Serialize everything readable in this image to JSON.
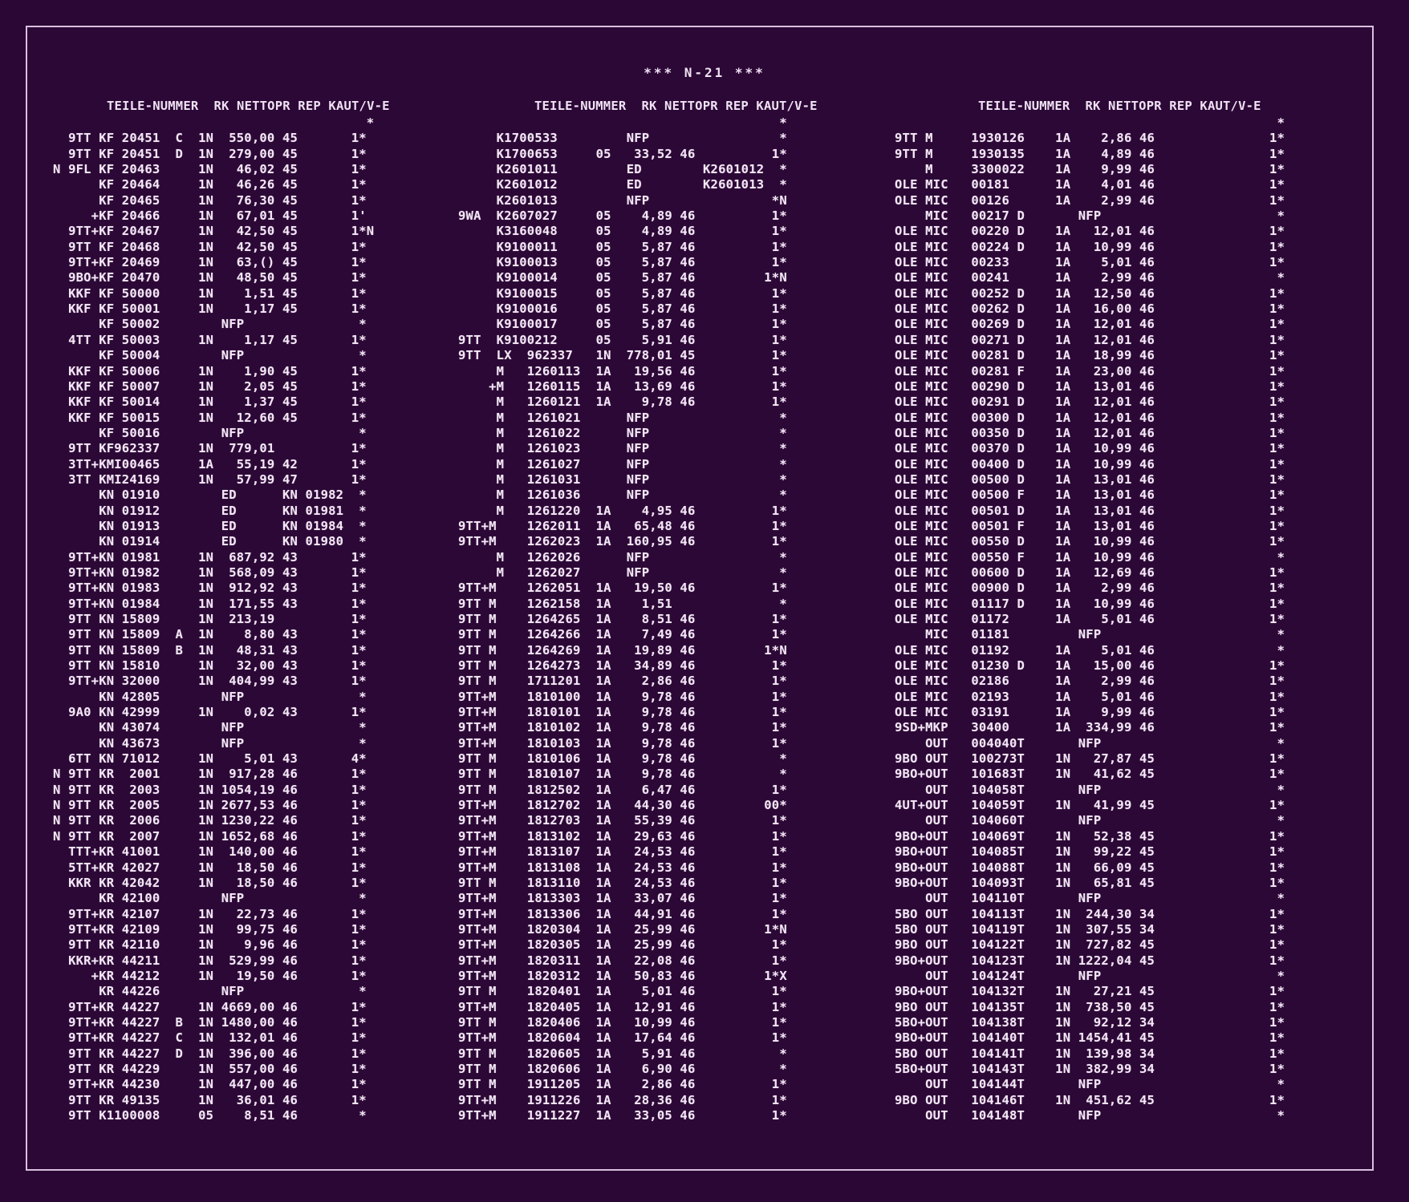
{
  "title": "*** N-21 ***",
  "header_label": "TEILE-NUMMER  RK NETTOPR REP KAUT/V-E",
  "column1": [
    "                                         *",
    "  9TT KF 20451  C  1N  550,00 45       1*",
    "  9TT KF 20451  D  1N  279,00 45       1*",
    "N 9FL KF 20463     1N   46,02 45       1*",
    "      KF 20464     1N   46,26 45       1*",
    "      KF 20465     1N   76,30 45       1*",
    "     +KF 20466     1N   67,01 45       1'",
    "  9TT+KF 20467     1N   42,50 45       1*N",
    "  9TT KF 20468     1N   42,50 45       1*",
    "  9TT+KF 20469     1N   63,() 45       1*",
    "  9BO+KF 20470     1N   48,50 45       1*",
    "  KKF KF 50000     1N    1,51 45       1*",
    "  KKF KF 50001     1N    1,17 45       1*",
    "      KF 50002        NFP               *",
    "  4TT KF 50003     1N    1,17 45       1*",
    "      KF 50004        NFP               *",
    "  KKF KF 50006     1N    1,90 45       1*",
    "  KKF KF 50007     1N    2,05 45       1*",
    "  KKF KF 50014     1N    1,37 45       1*",
    "  KKF KF 50015     1N   12,60 45       1*",
    "      KF 50016        NFP               *",
    "  9TT KF962337     1N  779,01          1*",
    "  3TT+KMI00465     1A   55,19 42       1*",
    "  3TT KMI24169     1N   57,99 47       1*",
    "      KN 01910        ED      KN 01982  *",
    "      KN 01912        ED      KN 01981  *",
    "      KN 01913        ED      KN 01984  *",
    "      KN 01914        ED      KN 01980  *",
    "  9TT+KN 01981     1N  687,92 43       1*",
    "  9TT+KN 01982     1N  568,09 43       1*",
    "  9TT+KN 01983     1N  912,92 43       1*",
    "  9TT+KN 01984     1N  171,55 43       1*",
    "  9TT KN 15809     1N  213,19          1*",
    "  9TT KN 15809  A  1N    8,80 43       1*",
    "  9TT KN 15809  B  1N   48,31 43       1*",
    "  9TT KN 15810     1N   32,00 43       1*",
    "  9TT+KN 32000     1N  404,99 43       1*",
    "      KN 42805        NFP               *",
    "  9A0 KN 42999     1N    0,02 43       1*",
    "      KN 43074        NFP               *",
    "      KN 43673        NFP               *",
    "  6TT KN 71012     1N    5,01 43       4*",
    "N 9TT KR  2001     1N  917,28 46       1*",
    "N 9TT KR  2003     1N 1054,19 46       1*",
    "N 9TT KR  2005     1N 2677,53 46       1*",
    "N 9TT KR  2006     1N 1230,22 46       1*",
    "N 9TT KR  2007     1N 1652,68 46       1*",
    "  TTT+KR 41001     1N  140,00 46       1*",
    "  5TT+KR 42027     1N   18,50 46       1*",
    "  KKR KR 42042     1N   18,50 46       1*",
    "      KR 42100        NFP               *",
    "  9TT+KR 42107     1N   22,73 46       1*",
    "  9TT+KR 42109     1N   99,75 46       1*",
    "  9TT KR 42110     1N    9,96 46       1*",
    "  KKR+KR 44211     1N  529,99 46       1*",
    "     +KR 44212     1N   19,50 46       1*",
    "      KR 44226        NFP               *",
    "  9TT+KR 44227     1N 4669,00 46       1*",
    "  9TT+KR 44227  B  1N 1480,00 46       1*",
    "  9TT+KR 44227  C  1N  132,01 46       1*",
    "  9TT KR 44227  D  1N  396,00 46       1*",
    "  9TT KR 44229     1N  557,00 46       1*",
    "  9TT+KR 44230     1N  447,00 46       1*",
    "  9TT KR 49135     1N   36,01 46       1*",
    "  9TT K1100008     05    8,51 46        *"
  ],
  "column2": [
    "                                          *",
    "     K1700533         NFP                 *",
    "     K1700653     05   33,52 46          1*",
    "     K2601011         ED        K2601012  *",
    "     K2601012         ED        K2601013  *",
    "     K2601013         NFP                *N",
    "9WA  K2607027     05    4,89 46          1*",
    "     K3160048     05    4,89 46          1*",
    "     K9100011     05    5,87 46          1*",
    "     K9100013     05    5,87 46          1*",
    "     K9100014     05    5,87 46         1*N",
    "     K9100015     05    5,87 46          1*",
    "     K9100016     05    5,87 46          1*",
    "     K9100017     05    5,87 46          1*",
    "9TT  K9100212     05    5,91 46          1*",
    "9TT  LX  962337   1N  778,01 45          1*",
    "     M   1260113  1A   19,56 46          1*",
    "    +M   1260115  1A   13,69 46          1*",
    "     M   1260121  1A    9,78 46          1*",
    "     M   1261021      NFP                 *",
    "     M   1261022      NFP                 *",
    "     M   1261023      NFP                 *",
    "     M   1261027      NFP                 *",
    "     M   1261031      NFP                 *",
    "     M   1261036      NFP                 *",
    "     M   1261220  1A    4,95 46          1*",
    "9TT+M    1262011  1A   65,48 46          1*",
    "9TT+M    1262023  1A  160,95 46          1*",
    "     M   1262026      NFP                 *",
    "     M   1262027      NFP                 *",
    "9TT+M    1262051  1A   19,50 46          1*",
    "9TT M    1262158  1A    1,51              *",
    "9TT M    1264265  1A    8,51 46          1*",
    "9TT M    1264266  1A    7,49 46          1*",
    "9TT M    1264269  1A   19,89 46         1*N",
    "9TT M    1264273  1A   34,89 46          1*",
    "9TT M    1711201  1A    2,86 46          1*",
    "9TT+M    1810100  1A    9,78 46          1*",
    "9TT+M    1810101  1A    9,78 46          1*",
    "9TT+M    1810102  1A    9,78 46          1*",
    "9TT+M    1810103  1A    9,78 46          1*",
    "9TT M    1810106  1A    9,78 46           *",
    "9TT M    1810107  1A    9,78 46           *",
    "9TT M    1812502  1A    6,47 46          1*",
    "9TT+M    1812702  1A   44,30 46         00*",
    "9TT+M    1812703  1A   55,39 46          1*",
    "9TT+M    1813102  1A   29,63 46          1*",
    "9TT+M    1813107  1A   24,53 46          1*",
    "9TT+M    1813108  1A   24,53 46          1*",
    "9TT M    1813110  1A   24,53 46          1*",
    "9TT+M    1813303  1A   33,07 46          1*",
    "9TT+M    1813306  1A   44,91 46          1*",
    "9TT+M    1820304  1A   25,99 46         1*N",
    "9TT+M    1820305  1A   25,99 46          1*",
    "9TT+M    1820311  1A   22,08 46          1*",
    "9TT+M    1820312  1A   50,83 46         1*X",
    "9TT M    1820401  1A    5,01 46          1*",
    "9TT+M    1820405  1A   12,91 46          1*",
    "9TT M    1820406  1A   10,99 46          1*",
    "9TT+M    1820604  1A   17,64 46          1*",
    "9TT M    1820605  1A    5,91 46           *",
    "9TT M    1820606  1A    6,90 46           *",
    "9TT M    1911205  1A    2,86 46          1*",
    "9TT+M    1911226  1A   28,36 46          1*",
    "9TT+M    1911227  1A   33,05 46          1*"
  ],
  "column3": [
    "                                                  *",
    "9TT M     1930126    1A    2,86 46               1*",
    "9TT M     1930135    1A    4,89 46               1*",
    "    M     3300022    1A    9,99 46               1*",
    "OLE MIC   00181      1A    4,01 46               1*",
    "OLE MIC   00126      1A    2,99 46               1*",
    "    MIC   00217 D       NFP                       *",
    "OLE MIC   00220 D    1A   12,01 46               1*",
    "OLE MIC   00224 D    1A   10,99 46               1*",
    "OLE MIC   00233      1A    5,01 46               1*",
    "OLE MIC   00241      1A    2,99 46                *",
    "OLE MIC   00252 D    1A   12,50 46               1*",
    "OLE MIC   00262 D    1A   16,00 46               1*",
    "OLE MIC   00269 D    1A   12,01 46               1*",
    "OLE MIC   00271 D    1A   12,01 46               1*",
    "OLE MIC   00281 D    1A   18,99 46               1*",
    "OLE MIC   00281 F    1A   23,00 46               1*",
    "OLE MIC   00290 D    1A   13,01 46               1*",
    "OLE MIC   00291 D    1A   12,01 46               1*",
    "OLE MIC   00300 D    1A   12,01 46               1*",
    "OLE MIC   00350 D    1A   12,01 46               1*",
    "OLE MIC   00370 D    1A   10,99 46               1*",
    "OLE MIC   00400 D    1A   10,99 46               1*",
    "OLE MIC   00500 D    1A   13,01 46               1*",
    "OLE MIC   00500 F    1A   13,01 46               1*",
    "OLE MIC   00501 D    1A   13,01 46               1*",
    "OLE MIC   00501 F    1A   13,01 46               1*",
    "OLE MIC   00550 D    1A   10,99 46               1*",
    "OLE MIC   00550 F    1A   10,99 46                *",
    "OLE MIC   00600 D    1A   12,69 46               1*",
    "OLE MIC   00900 D    1A    2,99 46               1*",
    "OLE MIC   01117 D    1A   10,99 46               1*",
    "OLE MIC   01172      1A    5,01 46               1*",
    "    MIC   01181         NFP                       *",
    "OLE MIC   01192      1A    5,01 46                *",
    "OLE MIC   01230 D    1A   15,00 46               1*",
    "OLE MIC   02186      1A    2,99 46               1*",
    "OLE MIC   02193      1A    5,01 46               1*",
    "OLE MIC   03191      1A    9,99 46               1*",
    "9SD+MKP   30400      1A  334,99 46               1*",
    "    OUT   004040T       NFP                       *",
    "9BO OUT   100273T    1N   27,87 45               1*",
    "9BO+OUT   101683T    1N   41,62 45               1*",
    "    OUT   104058T       NFP                       *",
    "4UT+OUT   104059T    1N   41,99 45               1*",
    "    OUT   104060T       NFP                       *",
    "9BO+OUT   104069T    1N   52,38 45               1*",
    "9BO+OUT   104085T    1N   99,22 45               1*",
    "9BO+OUT   104088T    1N   66,09 45               1*",
    "9BO+OUT   104093T    1N   65,81 45               1*",
    "    OUT   104110T       NFP                       *",
    "5BO OUT   104113T    1N  244,30 34               1*",
    "5BO OUT   104119T    1N  307,55 34               1*",
    "9BO OUT   104122T    1N  727,82 45               1*",
    "9BO+OUT   104123T    1N 1222,04 45               1*",
    "    OUT   104124T       NFP                       *",
    "9BO+OUT   104132T    1N   27,21 45               1*",
    "9BO OUT   104135T    1N  738,50 45               1*",
    "5BO+OUT   104138T    1N   92,12 34               1*",
    "9BO+OUT   104140T    1N 1454,41 45               1*",
    "5BO OUT   104141T    1N  139,98 34               1*",
    "5BO+OUT   104143T    1N  382,99 34               1*",
    "    OUT   104144T       NFP                       *",
    "9BO OUT   104146T    1N  451,62 45               1*",
    "    OUT   104148T       NFP                       *"
  ]
}
